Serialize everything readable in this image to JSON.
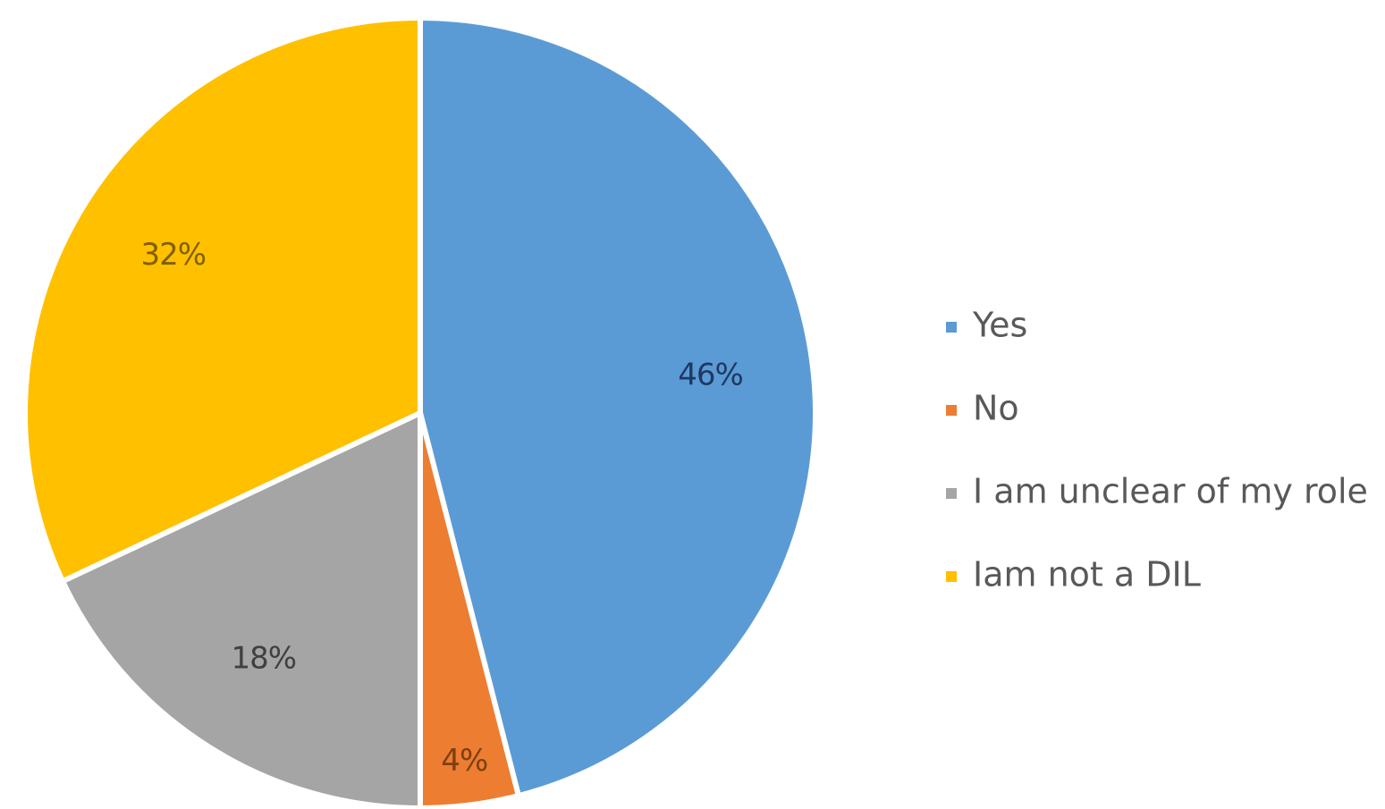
{
  "chart_data": {
    "type": "pie",
    "title": "",
    "categories": [
      "Yes",
      "No",
      "I am unclear of my role",
      "Iam not a DIL"
    ],
    "values": [
      46,
      4,
      18,
      32
    ],
    "data_labels": [
      "46%",
      "4%",
      "18%",
      "32%"
    ],
    "colors": [
      "#5B9BD5",
      "#ED7D31",
      "#A5A5A5",
      "#FFC000"
    ],
    "label_colors": [
      "#1F3864",
      "#7F3F10",
      "#404040",
      "#7F6000"
    ],
    "start_angle": "12 o'clock",
    "direction": "clockwise",
    "legend_position": "right"
  }
}
